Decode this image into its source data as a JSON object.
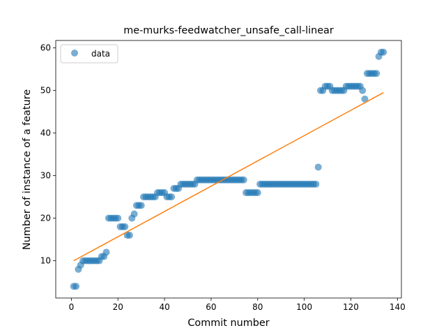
{
  "chart_data": {
    "type": "scatter",
    "title": "me-murks-feedwatcher_unsafe_call-linear",
    "xlabel": "Commit number",
    "ylabel": "Number of instance of a feature",
    "xlim": [
      -6.7,
      141.7
    ],
    "ylim": [
      1.25,
      61.75
    ],
    "xticks": [
      0,
      20,
      40,
      60,
      80,
      100,
      120,
      140
    ],
    "yticks": [
      10,
      20,
      30,
      40,
      50,
      60
    ],
    "grid": false,
    "legend": {
      "placement": "upper-left",
      "entries": [
        "data"
      ]
    },
    "colors": {
      "points": "#1f77b4",
      "fit": "#ff7f0e"
    },
    "series": [
      {
        "name": "data",
        "kind": "scatter",
        "x": [
          1,
          2,
          3,
          4,
          5,
          6,
          7,
          8,
          9,
          10,
          11,
          12,
          13,
          14,
          15,
          16,
          17,
          18,
          19,
          20,
          21,
          22,
          23,
          24,
          25,
          26,
          27,
          28,
          29,
          30,
          31,
          32,
          33,
          34,
          35,
          36,
          37,
          38,
          39,
          40,
          41,
          42,
          43,
          44,
          45,
          46,
          47,
          48,
          49,
          50,
          51,
          52,
          53,
          54,
          55,
          56,
          57,
          58,
          59,
          60,
          61,
          62,
          63,
          64,
          65,
          66,
          67,
          68,
          69,
          70,
          71,
          72,
          73,
          74,
          75,
          76,
          77,
          78,
          79,
          80,
          81,
          82,
          83,
          84,
          85,
          86,
          87,
          88,
          89,
          90,
          91,
          92,
          93,
          94,
          95,
          96,
          97,
          98,
          99,
          100,
          101,
          102,
          103,
          104,
          105,
          106,
          107,
          108,
          109,
          110,
          111,
          112,
          113,
          114,
          115,
          116,
          117,
          118,
          119,
          120,
          121,
          122,
          123,
          124,
          125,
          126,
          127,
          128,
          129,
          130,
          131,
          132,
          133,
          134
        ],
        "y": [
          4,
          4,
          8,
          9,
          10,
          10,
          10,
          10,
          10,
          10,
          10,
          10,
          11,
          11,
          12,
          20,
          20,
          20,
          20,
          20,
          18,
          18,
          18,
          16,
          16,
          20,
          21,
          23,
          23,
          23,
          25,
          25,
          25,
          25,
          25,
          25,
          26,
          26,
          26,
          26,
          25,
          25,
          25,
          27,
          27,
          27,
          28,
          28,
          28,
          28,
          28,
          28,
          28,
          29,
          29,
          29,
          29,
          29,
          29,
          29,
          29,
          29,
          29,
          29,
          29,
          29,
          29,
          29,
          29,
          29,
          29,
          29,
          29,
          29,
          26,
          26,
          26,
          26,
          26,
          26,
          28,
          28,
          28,
          28,
          28,
          28,
          28,
          28,
          28,
          28,
          28,
          28,
          28,
          28,
          28,
          28,
          28,
          28,
          28,
          28,
          28,
          28,
          28,
          28,
          28,
          32,
          50,
          50,
          51,
          51,
          51,
          50,
          50,
          50,
          50,
          50,
          50,
          51,
          51,
          51,
          51,
          51,
          51,
          51,
          50,
          48,
          54,
          54,
          54,
          54,
          54,
          58,
          59,
          59
        ]
      },
      {
        "kind": "line",
        "x": [
          1,
          134
        ],
        "y": [
          10.0,
          49.5
        ]
      }
    ]
  }
}
